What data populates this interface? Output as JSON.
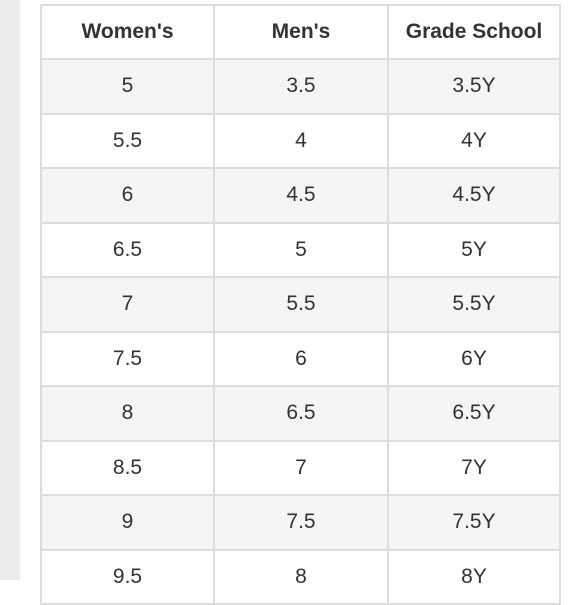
{
  "table": {
    "headers": [
      "Women's",
      "Men's",
      "Grade School"
    ],
    "rows": [
      [
        "5",
        "3.5",
        "3.5Y"
      ],
      [
        "5.5",
        "4",
        "4Y"
      ],
      [
        "6",
        "4.5",
        "4.5Y"
      ],
      [
        "6.5",
        "5",
        "5Y"
      ],
      [
        "7",
        "5.5",
        "5.5Y"
      ],
      [
        "7.5",
        "6",
        "6Y"
      ],
      [
        "8",
        "6.5",
        "6.5Y"
      ],
      [
        "8.5",
        "7",
        "7Y"
      ],
      [
        "9",
        "7.5",
        "7.5Y"
      ],
      [
        "9.5",
        "8",
        "8Y"
      ]
    ]
  },
  "colors": {
    "border": "#dcdcdc",
    "stripe": "#f5f5f5",
    "text": "#333333",
    "gutter": "#ececec"
  }
}
